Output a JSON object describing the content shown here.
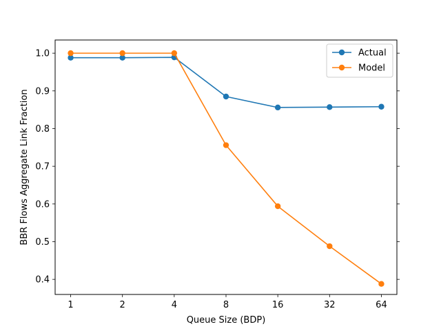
{
  "chart_data": {
    "type": "line",
    "title": "",
    "xlabel": "Queue Size (BDP)",
    "ylabel": "BBR Flows Aggregate Link Fraction",
    "categories": [
      "1",
      "2",
      "4",
      "8",
      "16",
      "32",
      "64"
    ],
    "x": [
      1,
      2,
      4,
      8,
      16,
      32,
      64
    ],
    "x_scale": "log2",
    "ylim": [
      0.36,
      1.035
    ],
    "yticks": [
      "0.4",
      "0.5",
      "0.6",
      "0.7",
      "0.8",
      "0.9",
      "1.0"
    ],
    "grid": false,
    "legend_position": "top-right",
    "series": [
      {
        "name": "Actual",
        "color": "#1f77b4",
        "marker": "circle",
        "values": [
          0.988,
          0.988,
          0.989,
          0.885,
          0.856,
          0.857,
          0.858
        ]
      },
      {
        "name": "Model",
        "color": "#ff7f0e",
        "marker": "circle",
        "values": [
          1.0,
          1.0,
          1.0,
          0.756,
          0.594,
          0.488,
          0.388
        ]
      }
    ]
  }
}
